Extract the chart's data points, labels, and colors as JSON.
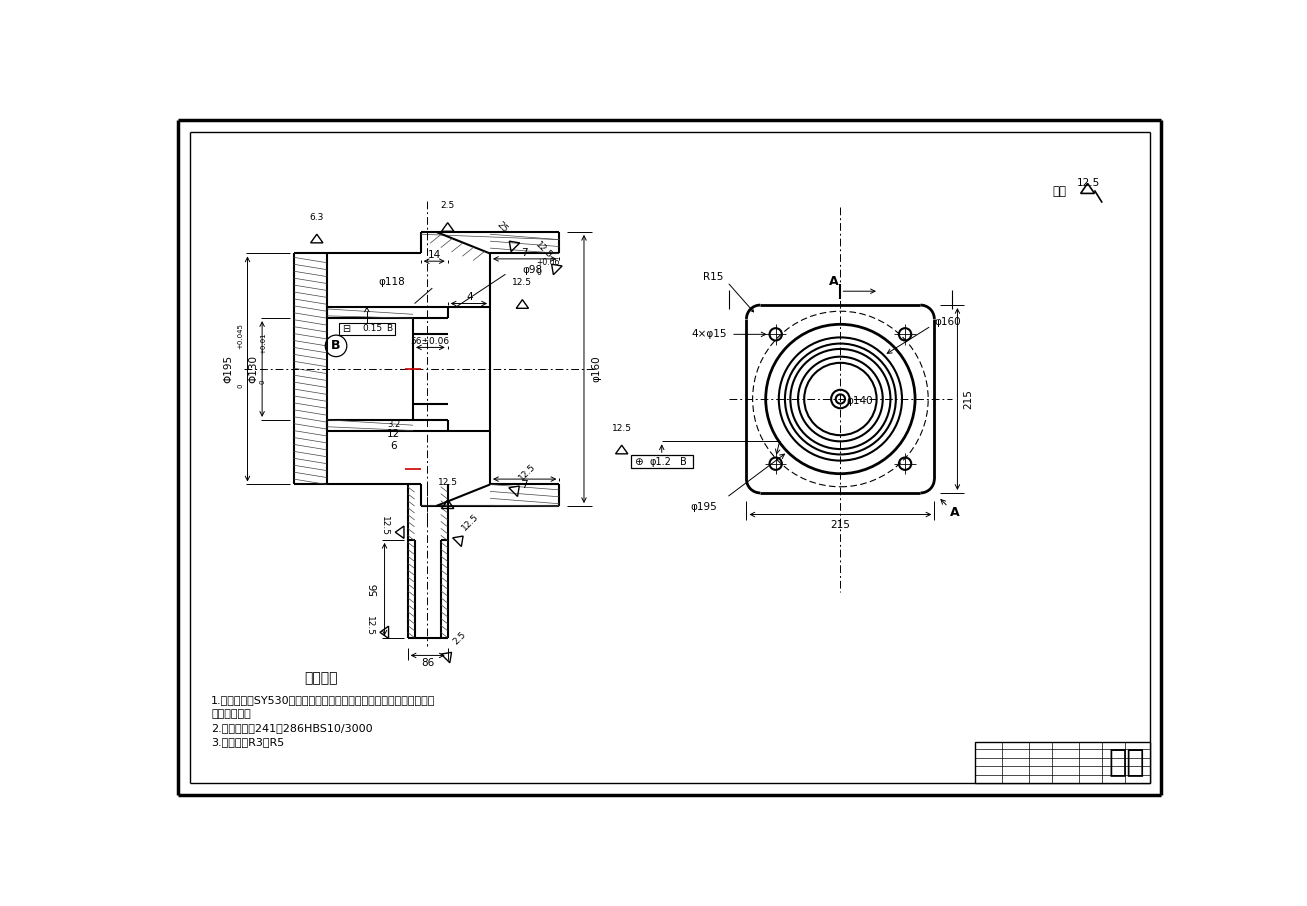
{
  "bg_color": "#ffffff",
  "lc": "#000000",
  "title": "技术要求",
  "note1a": "1.轴件应符合SY530《石油钻采机械产品用碳素钢和普通合金钢构件适",
  "note1b": "用技术条件》",
  "note2": "2.热处理硬度241－286HBS10/3000",
  "note3": "3.未注圆角R3－R5",
  "zhimo": "知末",
  "qiyu": "其余"
}
